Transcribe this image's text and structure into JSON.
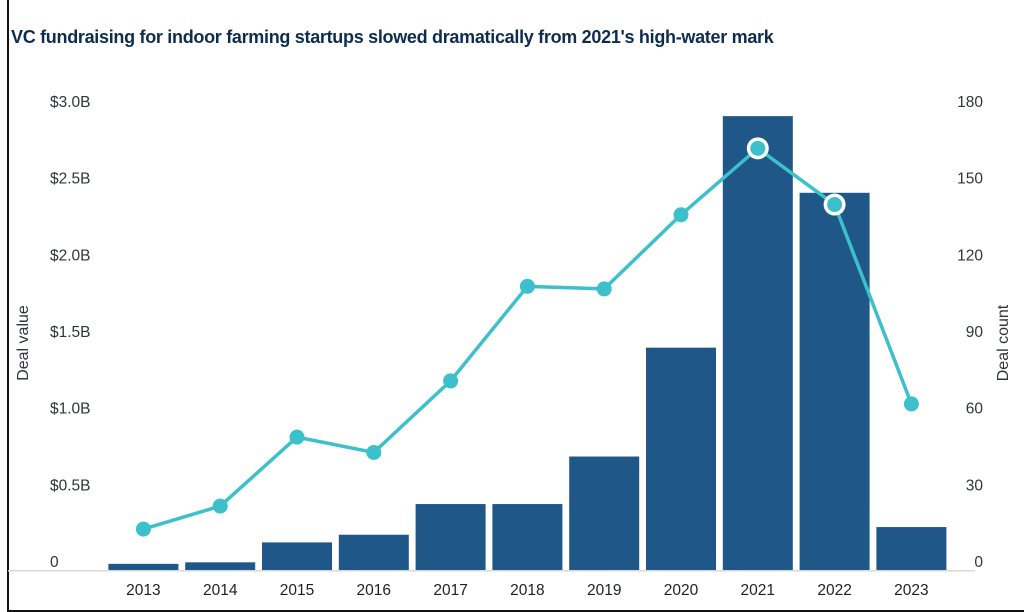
{
  "page": {
    "title": "VC fundraising for indoor farming startups slowed dramatically from 2021's high-water mark"
  },
  "chart_data": {
    "type": "combo_bar_line",
    "title": "VC fundraising for indoor farming startups slowed dramatically from 2021's high-water mark",
    "categories": [
      "2013",
      "2014",
      "2015",
      "2016",
      "2017",
      "2018",
      "2019",
      "2020",
      "2021",
      "2022",
      "2023"
    ],
    "series": [
      {
        "name": "Deal value",
        "type": "bar",
        "axis": "left",
        "unit": "USD billions",
        "values": [
          0.04,
          0.05,
          0.18,
          0.23,
          0.43,
          0.43,
          0.74,
          1.45,
          2.96,
          2.46,
          0.28
        ]
      },
      {
        "name": "Deal count",
        "type": "line",
        "axis": "right",
        "values": [
          16,
          25,
          52,
          46,
          74,
          111,
          110,
          139,
          165,
          143,
          65
        ],
        "highlighted_points": [
          "2021",
          "2022"
        ]
      }
    ],
    "left_axis": {
      "label": "Deal value",
      "range": [
        0,
        3.0
      ],
      "tick_labels": [
        "$3.0B",
        "$2.5B",
        "$2.0B",
        "$1.5B",
        "$1.0B",
        "$0.5B",
        "0"
      ]
    },
    "right_axis": {
      "label": "Deal count",
      "range": [
        0,
        180
      ],
      "tick_labels": [
        "180",
        "150",
        "120",
        "90",
        "60",
        "30",
        "0"
      ]
    },
    "x_axis": {
      "tick_labels": [
        "2013",
        "2014",
        "2015",
        "2016",
        "2017",
        "2018",
        "2019",
        "2020",
        "2021",
        "2022",
        "2023"
      ]
    },
    "legend": "none",
    "grid": false,
    "colors": {
      "bar": "#1f5788",
      "line": "#3cc1cb",
      "highlight_ring": "#ffffff",
      "title": "#0d2d50",
      "axis_text": "#30343b",
      "baseline": "#d9d9d9",
      "frame": "#111111",
      "background": "#ffffff"
    }
  }
}
